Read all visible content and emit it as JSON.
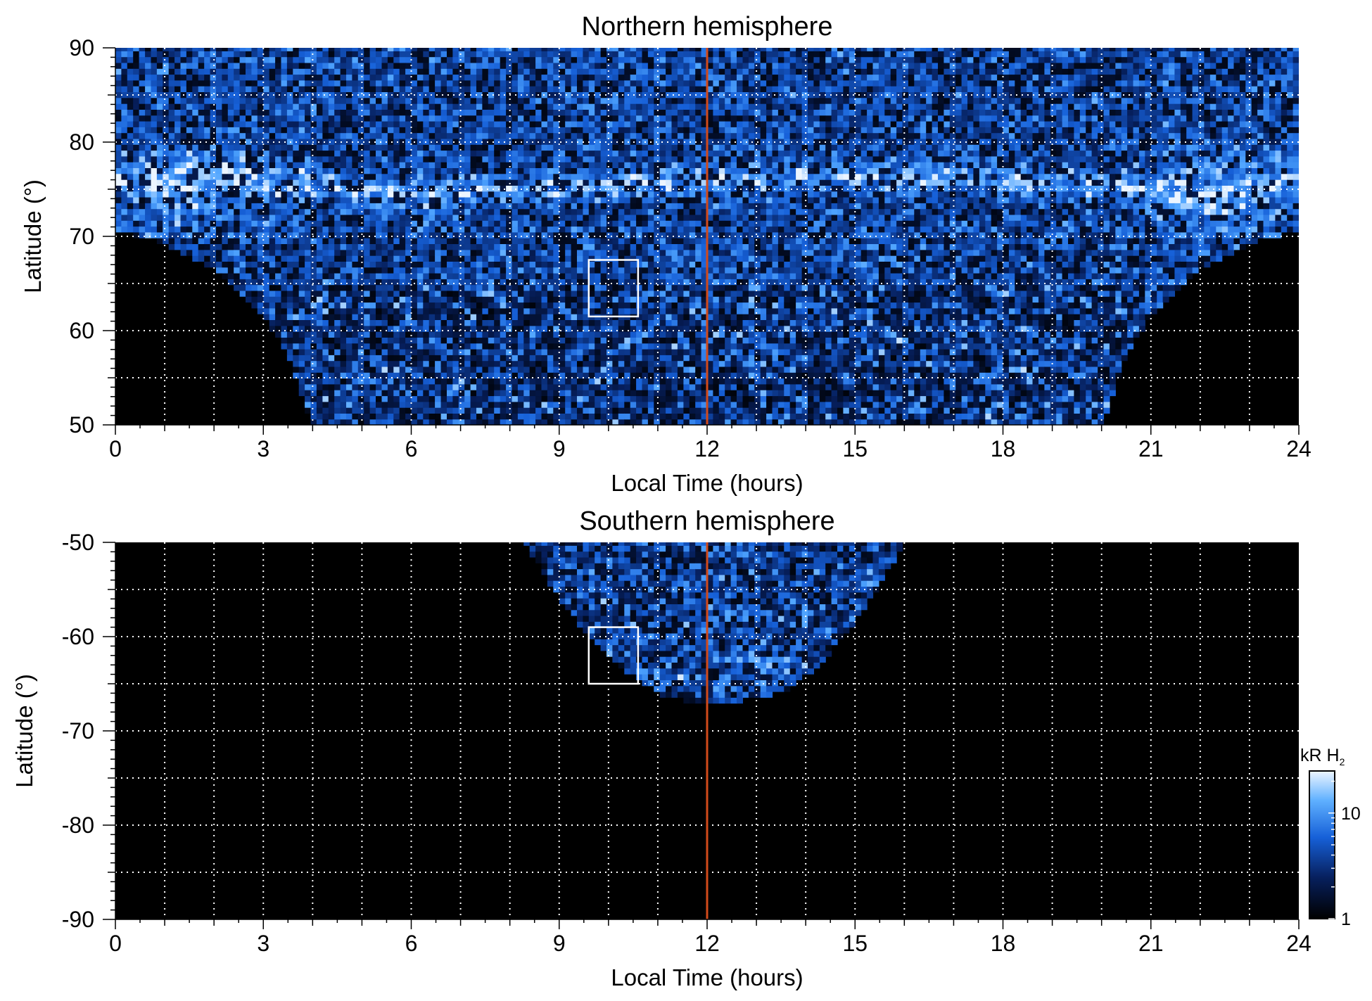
{
  "chart_data": [
    {
      "type": "heatmap",
      "title": "Northern hemisphere",
      "xlabel": "Local Time (hours)",
      "ylabel": "Latitude (°)",
      "xlim": [
        0,
        24
      ],
      "ylim": [
        50,
        90
      ],
      "x_ticks": [
        0,
        3,
        6,
        9,
        12,
        15,
        18,
        21,
        24
      ],
      "y_ticks": [
        50,
        60,
        70,
        80,
        90
      ],
      "x_tick_labels": [
        "0",
        "3",
        "6",
        "9",
        "12",
        "15",
        "18",
        "21",
        "24"
      ],
      "y_tick_labels": [
        "50",
        "60",
        "70",
        "80",
        "90"
      ],
      "x_grid_step": 1,
      "y_grid": [
        55,
        60,
        65,
        70,
        75,
        80,
        85
      ],
      "grid": true,
      "grid_style": "white dotted",
      "reference_line_x": 12,
      "reference_line_color": "#d24a1a",
      "highlight_box": {
        "x": [
          9.6,
          10.6
        ],
        "y": [
          61.5,
          67.5
        ]
      },
      "coverage_edge": [
        {
          "lt": 0.0,
          "lat": 70.8
        },
        {
          "lt": 1.0,
          "lat": 69.2
        },
        {
          "lt": 2.0,
          "lat": 66.4
        },
        {
          "lt": 3.0,
          "lat": 61.5
        },
        {
          "lt": 3.5,
          "lat": 57.5
        },
        {
          "lt": 4.0,
          "lat": 50.0
        },
        {
          "lt": 20.0,
          "lat": 50.0
        },
        {
          "lt": 20.5,
          "lat": 57.5
        },
        {
          "lt": 21.0,
          "lat": 61.5
        },
        {
          "lt": 22.0,
          "lat": 66.4
        },
        {
          "lt": 23.0,
          "lat": 69.2
        },
        {
          "lt": 24.0,
          "lat": 70.8
        }
      ],
      "main_oval": [
        {
          "lt": 0.0,
          "lat": 76.0
        },
        {
          "lt": 3.0,
          "lat": 76.0
        },
        {
          "lt": 6.0,
          "lat": 74.3
        },
        {
          "lt": 8.5,
          "lat": 75.2
        },
        {
          "lt": 12.0,
          "lat": 76.0
        },
        {
          "lt": 16.0,
          "lat": 76.5
        },
        {
          "lt": 20.0,
          "lat": 75.5
        },
        {
          "lt": 22.0,
          "lat": 74.0
        },
        {
          "lt": 24.0,
          "lat": 76.0
        }
      ],
      "colors": {
        "low": "#000000",
        "mid": "#1660d8",
        "high": "#e8f2ff"
      }
    },
    {
      "type": "heatmap",
      "title": "Southern hemisphere",
      "xlabel": "Local Time (hours)",
      "ylabel": "Latitude (°)",
      "xlim": [
        0,
        24
      ],
      "ylim": [
        -90,
        -50
      ],
      "x_ticks": [
        0,
        3,
        6,
        9,
        12,
        15,
        18,
        21,
        24
      ],
      "y_ticks": [
        -90,
        -80,
        -70,
        -60,
        -50
      ],
      "x_tick_labels": [
        "0",
        "3",
        "6",
        "9",
        "12",
        "15",
        "18",
        "21",
        "24"
      ],
      "y_tick_labels": [
        "-90",
        "-80",
        "-70",
        "-60",
        "-50"
      ],
      "x_grid_step": 1,
      "y_grid": [
        -55,
        -60,
        -65,
        -70,
        -75,
        -80,
        -85
      ],
      "grid": true,
      "grid_style": "white dotted",
      "reference_line_x": 12,
      "reference_line_color": "#d24a1a",
      "highlight_box": {
        "x": [
          9.6,
          10.6
        ],
        "y": [
          -65.0,
          -59.0
        ]
      },
      "coverage_edge": [
        {
          "lt": 8.3,
          "lat": -50.0
        },
        {
          "lt": 9.0,
          "lat": -56.0
        },
        {
          "lt": 9.6,
          "lat": -60.0
        },
        {
          "lt": 10.3,
          "lat": -63.5
        },
        {
          "lt": 11.0,
          "lat": -66.0
        },
        {
          "lt": 11.7,
          "lat": -67.0
        },
        {
          "lt": 12.5,
          "lat": -67.0
        },
        {
          "lt": 13.5,
          "lat": -66.0
        },
        {
          "lt": 14.3,
          "lat": -63.0
        },
        {
          "lt": 15.2,
          "lat": -57.0
        },
        {
          "lt": 16.0,
          "lat": -50.0
        }
      ],
      "colors": {
        "low": "#000000",
        "mid": "#1660d8",
        "high": "#e8f2ff"
      }
    }
  ],
  "colorbar": {
    "label_main": "kR H",
    "label_sub": "2",
    "tick_labels": [
      "1",
      "10"
    ],
    "ticks": [
      1,
      10
    ],
    "range": [
      1,
      25
    ],
    "scale": "log"
  }
}
